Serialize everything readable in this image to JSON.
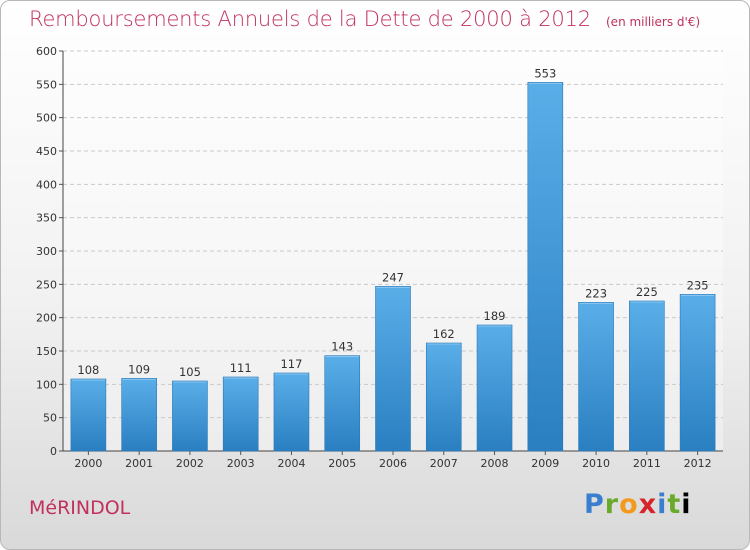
{
  "header": {
    "title": "Remboursements Annuels de la Dette de 2000 à 2012",
    "unit": "(en milliers d'€)"
  },
  "footer": {
    "commune": "MéRINDOL",
    "logo_letters": [
      "P",
      "r",
      "o",
      "x",
      "i",
      "t",
      "i"
    ]
  },
  "colors": {
    "title": "#c0315d",
    "bar_top": "#5aaee8",
    "bar_bottom": "#2a7fc1"
  },
  "chart_data": {
    "type": "bar",
    "categories": [
      "2000",
      "2001",
      "2002",
      "2003",
      "2004",
      "2005",
      "2006",
      "2007",
      "2008",
      "2009",
      "2010",
      "2011",
      "2012"
    ],
    "values": [
      108,
      109,
      105,
      111,
      117,
      143,
      247,
      162,
      189,
      553,
      223,
      225,
      235
    ],
    "title": "Remboursements Annuels de la Dette de 2000 à 2012",
    "subtitle": "(en milliers d'€)",
    "xlabel": "",
    "ylabel": "",
    "ylim": [
      0,
      600
    ],
    "yticks": [
      0,
      50,
      100,
      150,
      200,
      250,
      300,
      350,
      400,
      450,
      500,
      550,
      600
    ],
    "grid": true,
    "legend": "none"
  }
}
